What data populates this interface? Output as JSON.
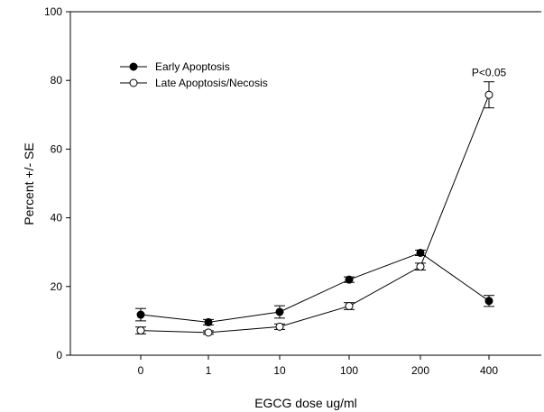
{
  "chart_data": {
    "type": "line",
    "title": "",
    "xlabel": "EGCG dose ug/ml",
    "ylabel": "Percent +/- SE",
    "categories": [
      "0",
      "1",
      "10",
      "100",
      "200",
      "400"
    ],
    "ylim": [
      0,
      100
    ],
    "yticks": [
      "0",
      "20",
      "40",
      "60",
      "80",
      "100"
    ],
    "grid": false,
    "legend_position": "top-left",
    "series": [
      {
        "name": "Early Apoptosis",
        "marker": "filled-circle",
        "color": "#000000",
        "values": [
          11.8,
          9.6,
          12.6,
          22.0,
          29.8,
          15.8
        ],
        "errors": [
          1.8,
          0.8,
          1.8,
          0.8,
          0.8,
          1.6
        ]
      },
      {
        "name": "Late Apoptosis/Necosis",
        "marker": "open-circle",
        "color": "#000000",
        "values": [
          7.2,
          6.6,
          8.3,
          14.3,
          25.8,
          75.8
        ],
        "errors": [
          1.0,
          0.5,
          0.8,
          1.0,
          1.0,
          3.8
        ]
      }
    ],
    "annotations": [
      {
        "text": "P<0.05",
        "category": "400",
        "series": "Late Apoptosis/Necosis"
      }
    ]
  }
}
